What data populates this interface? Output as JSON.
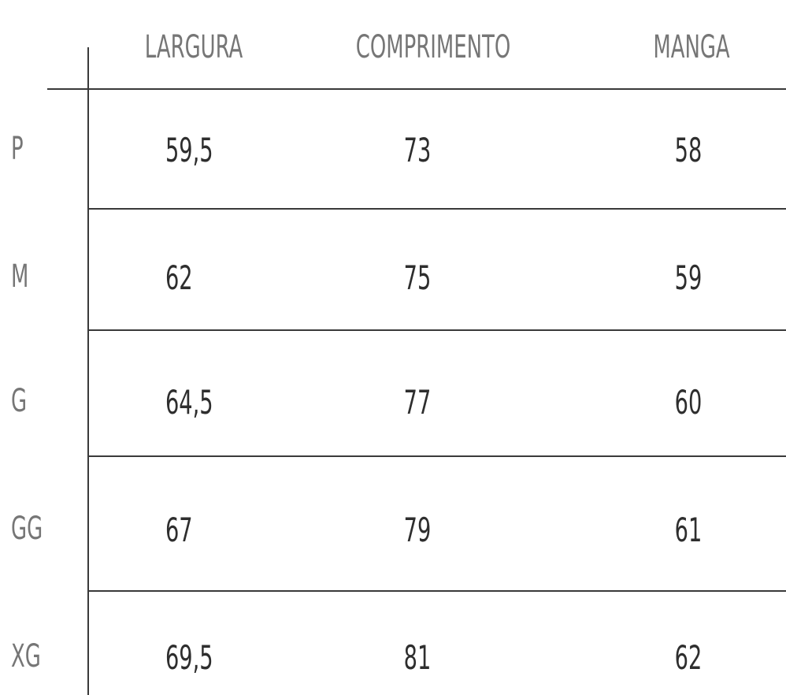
{
  "table": {
    "headers": [
      "LARGURA",
      "COMPRIMENTO",
      "MANGA"
    ],
    "rows": [
      {
        "size": "P",
        "cells": [
          "59,5",
          "73",
          "58"
        ]
      },
      {
        "size": "M",
        "cells": [
          "62",
          "75",
          "59"
        ]
      },
      {
        "size": "G",
        "cells": [
          "64,5",
          "77",
          "60"
        ]
      },
      {
        "size": "GG",
        "cells": [
          "67",
          "79",
          "61"
        ]
      },
      {
        "size": "XG",
        "cells": [
          "69,5",
          "81",
          "62"
        ]
      }
    ]
  },
  "colors": {
    "header_text": "#767676",
    "value_text": "#2e2e2e",
    "rule": "#3a3a3a",
    "background": "#ffffff"
  }
}
